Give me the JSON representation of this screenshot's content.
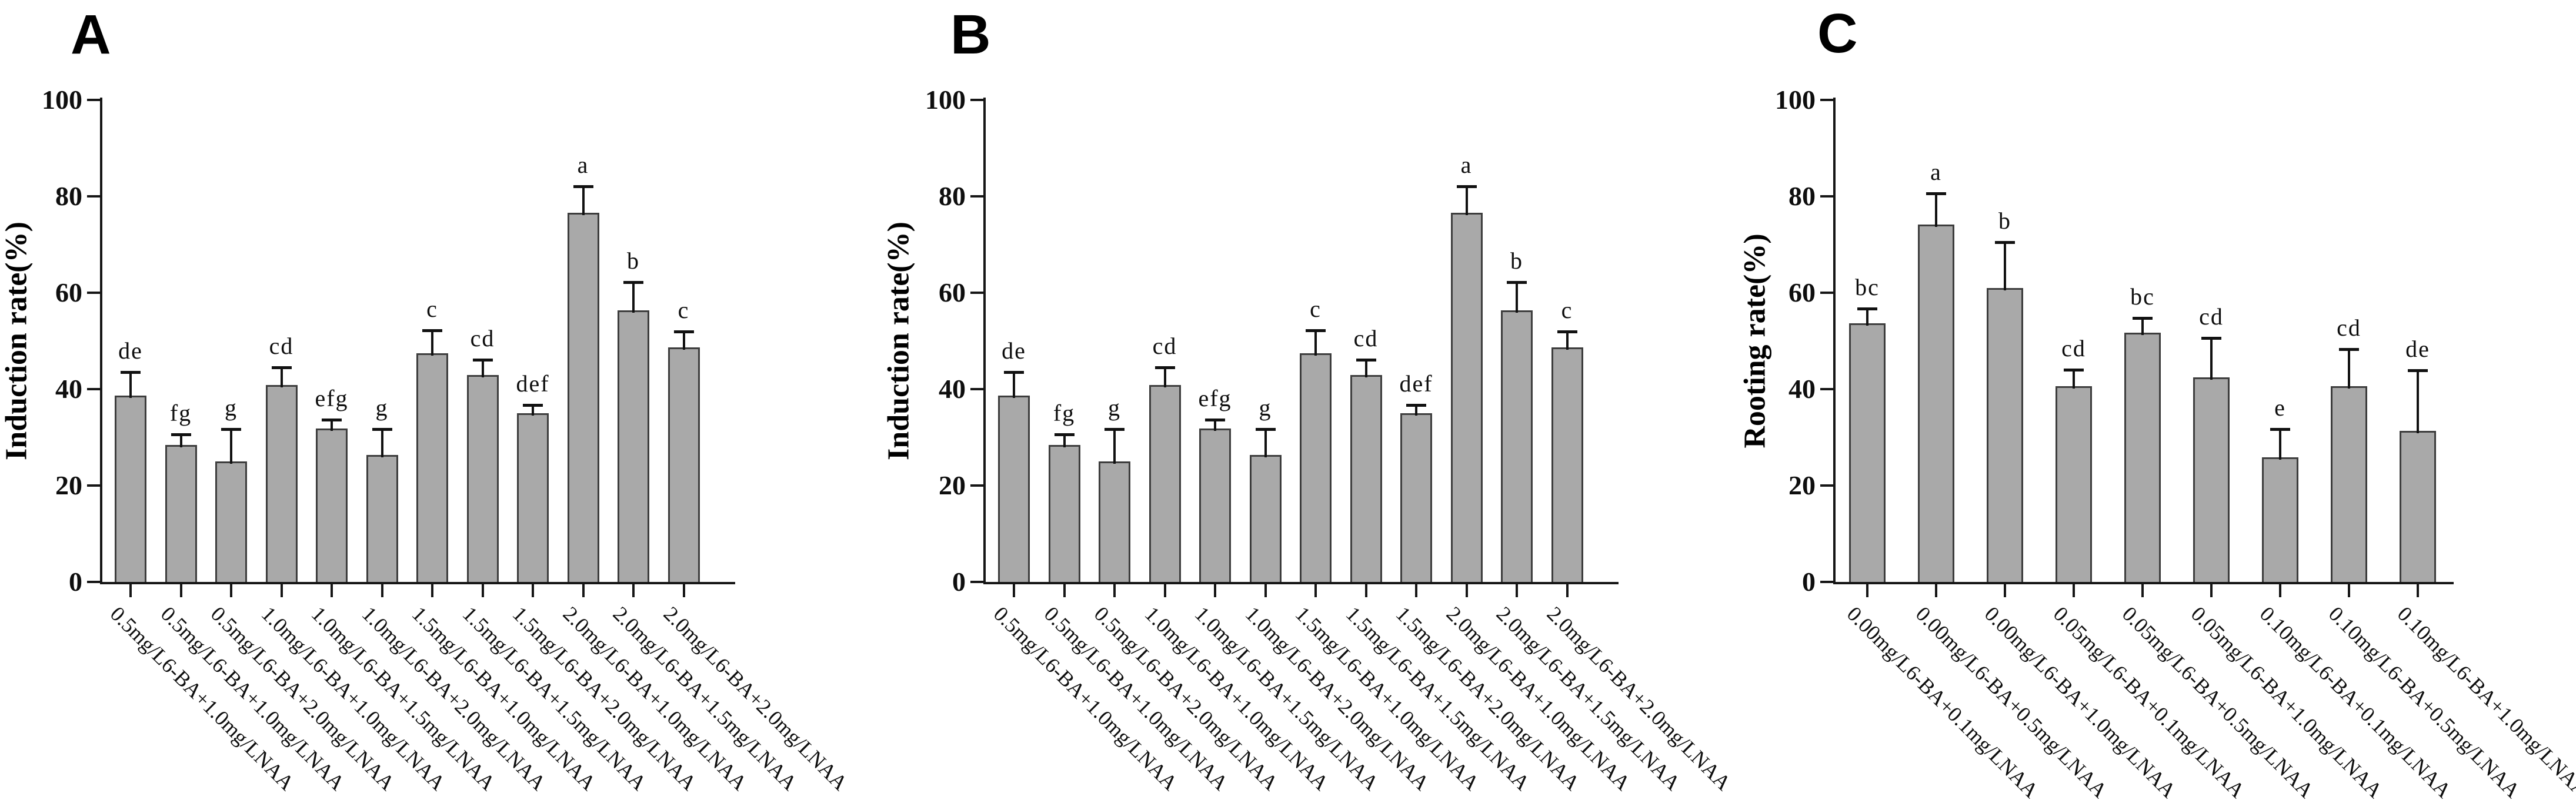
{
  "figure": {
    "background": "#ffffff",
    "text_color": "#0e0e0e",
    "bar_fill": "#a9a9a9",
    "bar_border": "#3d3d3d",
    "axis_color": "#161616"
  },
  "chart_data": [
    {
      "type": "bar",
      "panel_letter": "A",
      "ylabel": "Induction rate(%)",
      "xlabel": "",
      "ylim": [
        0,
        100
      ],
      "y_ticks": [
        0,
        20,
        40,
        60,
        80,
        100
      ],
      "grid": false,
      "legend": "none",
      "categories": [
        "0.5mg/L6-BA+1.0mg/LNAA",
        "0.5mg/L6-BA+1.0mg/LNAA",
        "0.5mg/L6-BA+2.0mg/LNAA",
        "1.0mg/L6-BA+1.0mg/LNAA",
        "1.0mg/L6-BA+1.5mg/LNAA",
        "1.0mg/L6-BA+2.0mg/LNAA",
        "1.5mg/L6-BA+1.0mg/LNAA",
        "1.5mg/L6-BA+1.5mg/LNAA",
        "1.5mg/L6-BA+2.0mg/LNAA",
        "2.0mg/L6-BA+1.0mg/LNAA",
        "2.0mg/L6-BA+1.5mg/LNAA",
        "2.0mg/L6-BA+2.0mg/LNAA"
      ],
      "values": [
        38.6,
        28.4,
        25.0,
        40.9,
        31.8,
        26.3,
        47.4,
        42.9,
        35.0,
        76.6,
        56.3,
        48.6
      ],
      "errors": [
        5.2,
        2.5,
        7.0,
        3.8,
        2.1,
        5.6,
        5.1,
        3.5,
        2.0,
        5.7,
        6.2,
        3.6
      ],
      "sig_letters": [
        "de",
        "fg",
        "g",
        "cd",
        "efg",
        "g",
        "c",
        "cd",
        "def",
        "a",
        "b",
        "c"
      ]
    },
    {
      "type": "bar",
      "panel_letter": "B",
      "ylabel": "Induction rate(%)",
      "xlabel": "",
      "ylim": [
        0,
        100
      ],
      "y_ticks": [
        0,
        20,
        40,
        60,
        80,
        100
      ],
      "grid": false,
      "legend": "none",
      "categories": [
        "0.5mg/L6-BA+1.0mg/LNAA",
        "0.5mg/L6-BA+1.0mg/LNAA",
        "0.5mg/L6-BA+2.0mg/LNAA",
        "1.0mg/L6-BA+1.0mg/LNAA",
        "1.0mg/L6-BA+1.5mg/LNAA",
        "1.0mg/L6-BA+2.0mg/LNAA",
        "1.5mg/L6-BA+1.0mg/LNAA",
        "1.5mg/L6-BA+1.5mg/LNAA",
        "1.5mg/L6-BA+2.0mg/LNAA",
        "2.0mg/L6-BA+1.0mg/LNAA",
        "2.0mg/L6-BA+1.5mg/LNAA",
        "2.0mg/L6-BA+2.0mg/LNAA"
      ],
      "values": [
        38.6,
        28.4,
        25.0,
        40.9,
        31.8,
        26.3,
        47.4,
        42.9,
        35.0,
        76.6,
        56.3,
        48.6
      ],
      "errors": [
        5.2,
        2.5,
        7.0,
        3.8,
        2.1,
        5.6,
        5.1,
        3.5,
        2.0,
        5.7,
        6.2,
        3.6
      ],
      "sig_letters": [
        "de",
        "fg",
        "g",
        "cd",
        "efg",
        "g",
        "c",
        "cd",
        "def",
        "a",
        "b",
        "c"
      ]
    },
    {
      "type": "bar",
      "panel_letter": "C",
      "ylabel": "Rooting rate(%)",
      "xlabel": "",
      "ylim": [
        0,
        100
      ],
      "y_ticks": [
        0,
        20,
        40,
        60,
        80,
        100
      ],
      "grid": false,
      "legend": "none",
      "categories": [
        "0.00mg/L6-BA+0.1mg/LNAA",
        "0.00mg/L6-BA+0.5mg/LNAA",
        "0.00mg/L6-BA+1.0mg/LNAA",
        "0.05mg/L6-BA+0.1mg/LNAA",
        "0.05mg/L6-BA+0.5mg/LNAA",
        "0.05mg/L6-BA+1.0mg/LNAA",
        "0.10mg/L6-BA+0.1mg/LNAA",
        "0.10mg/L6-BA+0.5mg/LNAA",
        "0.10mg/L6-BA+1.0mg/LNAA"
      ],
      "values": [
        53.6,
        74.2,
        61.0,
        40.6,
        51.7,
        42.4,
        25.9,
        40.6,
        31.4
      ],
      "errors": [
        3.3,
        6.6,
        9.7,
        3.7,
        3.3,
        8.5,
        6.1,
        7.9,
        12.8
      ],
      "sig_letters": [
        "bc",
        "a",
        "b",
        "cd",
        "bc",
        "cd",
        "e",
        "cd",
        "de"
      ]
    }
  ]
}
